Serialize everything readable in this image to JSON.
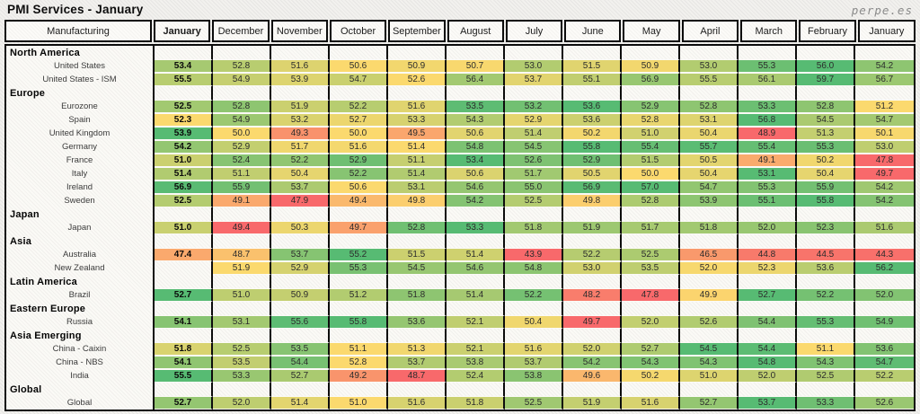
{
  "title": "PMI Services - January",
  "watermark": "perpe.es",
  "chart_data": {
    "type": "heatmap",
    "title": "PMI Services - January",
    "row_header_label": "Manufacturing",
    "columns": [
      "January",
      "December",
      "November",
      "October",
      "September",
      "August",
      "July",
      "June",
      "May",
      "April",
      "March",
      "February",
      "January"
    ],
    "highlighted_column": "January",
    "legend_position": "none",
    "color_scale": {
      "low_color": "#F8696B",
      "mid_color": "#FBD96E",
      "high_color": "#57BB73",
      "midpoint_value": 50,
      "normalization": "per-row min to max, yellow fixed at 50"
    },
    "sections": [
      {
        "label": "North America",
        "rows": [
          {
            "label": "United States",
            "values": [
              53.4,
              52.8,
              51.6,
              50.6,
              50.9,
              50.7,
              53.0,
              51.5,
              50.9,
              53.0,
              55.3,
              56.0,
              54.2
            ]
          },
          {
            "label": "United States - ISM",
            "values": [
              55.5,
              54.9,
              53.9,
              54.7,
              52.6,
              56.4,
              53.7,
              55.1,
              56.9,
              55.5,
              56.1,
              59.7,
              56.7
            ]
          }
        ]
      },
      {
        "label": "Europe",
        "rows": [
          {
            "label": "Eurozone",
            "values": [
              52.5,
              52.8,
              51.9,
              52.2,
              51.6,
              53.5,
              53.2,
              53.6,
              52.9,
              52.8,
              53.3,
              52.8,
              51.2
            ]
          },
          {
            "label": "Spain",
            "values": [
              52.3,
              54.9,
              53.2,
              52.7,
              53.3,
              54.3,
              52.9,
              53.6,
              52.8,
              53.1,
              56.8,
              54.5,
              54.7
            ]
          },
          {
            "label": "United Kingdom",
            "values": [
              53.9,
              50.0,
              49.3,
              50.0,
              49.5,
              50.6,
              51.4,
              50.2,
              51.0,
              50.4,
              48.9,
              51.3,
              50.1
            ]
          },
          {
            "label": "Germany",
            "values": [
              54.2,
              52.9,
              51.7,
              51.6,
              51.4,
              54.8,
              54.5,
              55.8,
              55.4,
              55.7,
              55.4,
              55.3,
              53.0
            ]
          },
          {
            "label": "France",
            "values": [
              51.0,
              52.4,
              52.2,
              52.9,
              51.1,
              53.4,
              52.6,
              52.9,
              51.5,
              50.5,
              49.1,
              50.2,
              47.8
            ]
          },
          {
            "label": "Italy",
            "values": [
              51.4,
              51.1,
              50.4,
              52.2,
              51.4,
              50.6,
              51.7,
              50.5,
              50.0,
              50.4,
              53.1,
              50.4,
              49.7
            ]
          },
          {
            "label": "Ireland",
            "values": [
              56.9,
              55.9,
              53.7,
              50.6,
              53.1,
              54.6,
              55.0,
              56.9,
              57.0,
              54.7,
              55.3,
              55.9,
              54.2
            ]
          },
          {
            "label": "Sweden",
            "values": [
              52.5,
              49.1,
              47.9,
              49.4,
              49.8,
              54.2,
              52.5,
              49.8,
              52.8,
              53.9,
              55.1,
              55.8,
              54.2
            ]
          }
        ]
      },
      {
        "label": "Japan",
        "rows": [
          {
            "label": "Japan",
            "values": [
              51.0,
              49.4,
              50.3,
              49.7,
              52.8,
              53.3,
              51.8,
              51.9,
              51.7,
              51.8,
              52.0,
              52.3,
              51.6
            ]
          }
        ]
      },
      {
        "label": "Asia",
        "rows": [
          {
            "label": "Australia",
            "values": [
              47.4,
              48.7,
              53.7,
              55.2,
              51.5,
              51.4,
              43.9,
              52.2,
              52.5,
              46.5,
              44.8,
              44.5,
              44.3
            ]
          },
          {
            "label": "New Zealand",
            "values": [
              null,
              51.9,
              52.9,
              55.3,
              54.5,
              54.6,
              54.8,
              53.0,
              53.5,
              52.0,
              52.3,
              53.6,
              56.2
            ]
          }
        ]
      },
      {
        "label": "Latin America",
        "rows": [
          {
            "label": "Brazil",
            "values": [
              52.7,
              51.0,
              50.9,
              51.2,
              51.8,
              51.4,
              52.2,
              48.2,
              47.8,
              49.9,
              52.7,
              52.2,
              52.0
            ]
          }
        ]
      },
      {
        "label": "Eastern Europe",
        "rows": [
          {
            "label": "Russia",
            "values": [
              54.1,
              53.1,
              55.6,
              55.8,
              53.6,
              52.1,
              50.4,
              49.7,
              52.0,
              52.6,
              54.4,
              55.3,
              54.9
            ]
          }
        ]
      },
      {
        "label": "Asia Emerging",
        "rows": [
          {
            "label": "China - Caixin",
            "values": [
              51.8,
              52.5,
              53.5,
              51.1,
              51.3,
              52.1,
              51.6,
              52.0,
              52.7,
              54.5,
              54.4,
              51.1,
              53.6
            ]
          },
          {
            "label": "China - NBS",
            "values": [
              54.1,
              53.5,
              54.4,
              52.8,
              53.7,
              53.8,
              53.7,
              54.2,
              54.3,
              54.3,
              54.8,
              54.3,
              54.7
            ]
          },
          {
            "label": "India",
            "values": [
              55.5,
              53.3,
              52.7,
              49.2,
              48.7,
              52.4,
              53.8,
              49.6,
              50.2,
              51.0,
              52.0,
              52.5,
              52.2
            ]
          }
        ]
      },
      {
        "label": "Global",
        "rows": [
          {
            "label": "Global",
            "values": [
              52.7,
              52.0,
              51.4,
              51.0,
              51.6,
              51.8,
              52.5,
              51.9,
              51.6,
              52.7,
              53.7,
              53.3,
              52.6
            ]
          }
        ]
      }
    ]
  }
}
